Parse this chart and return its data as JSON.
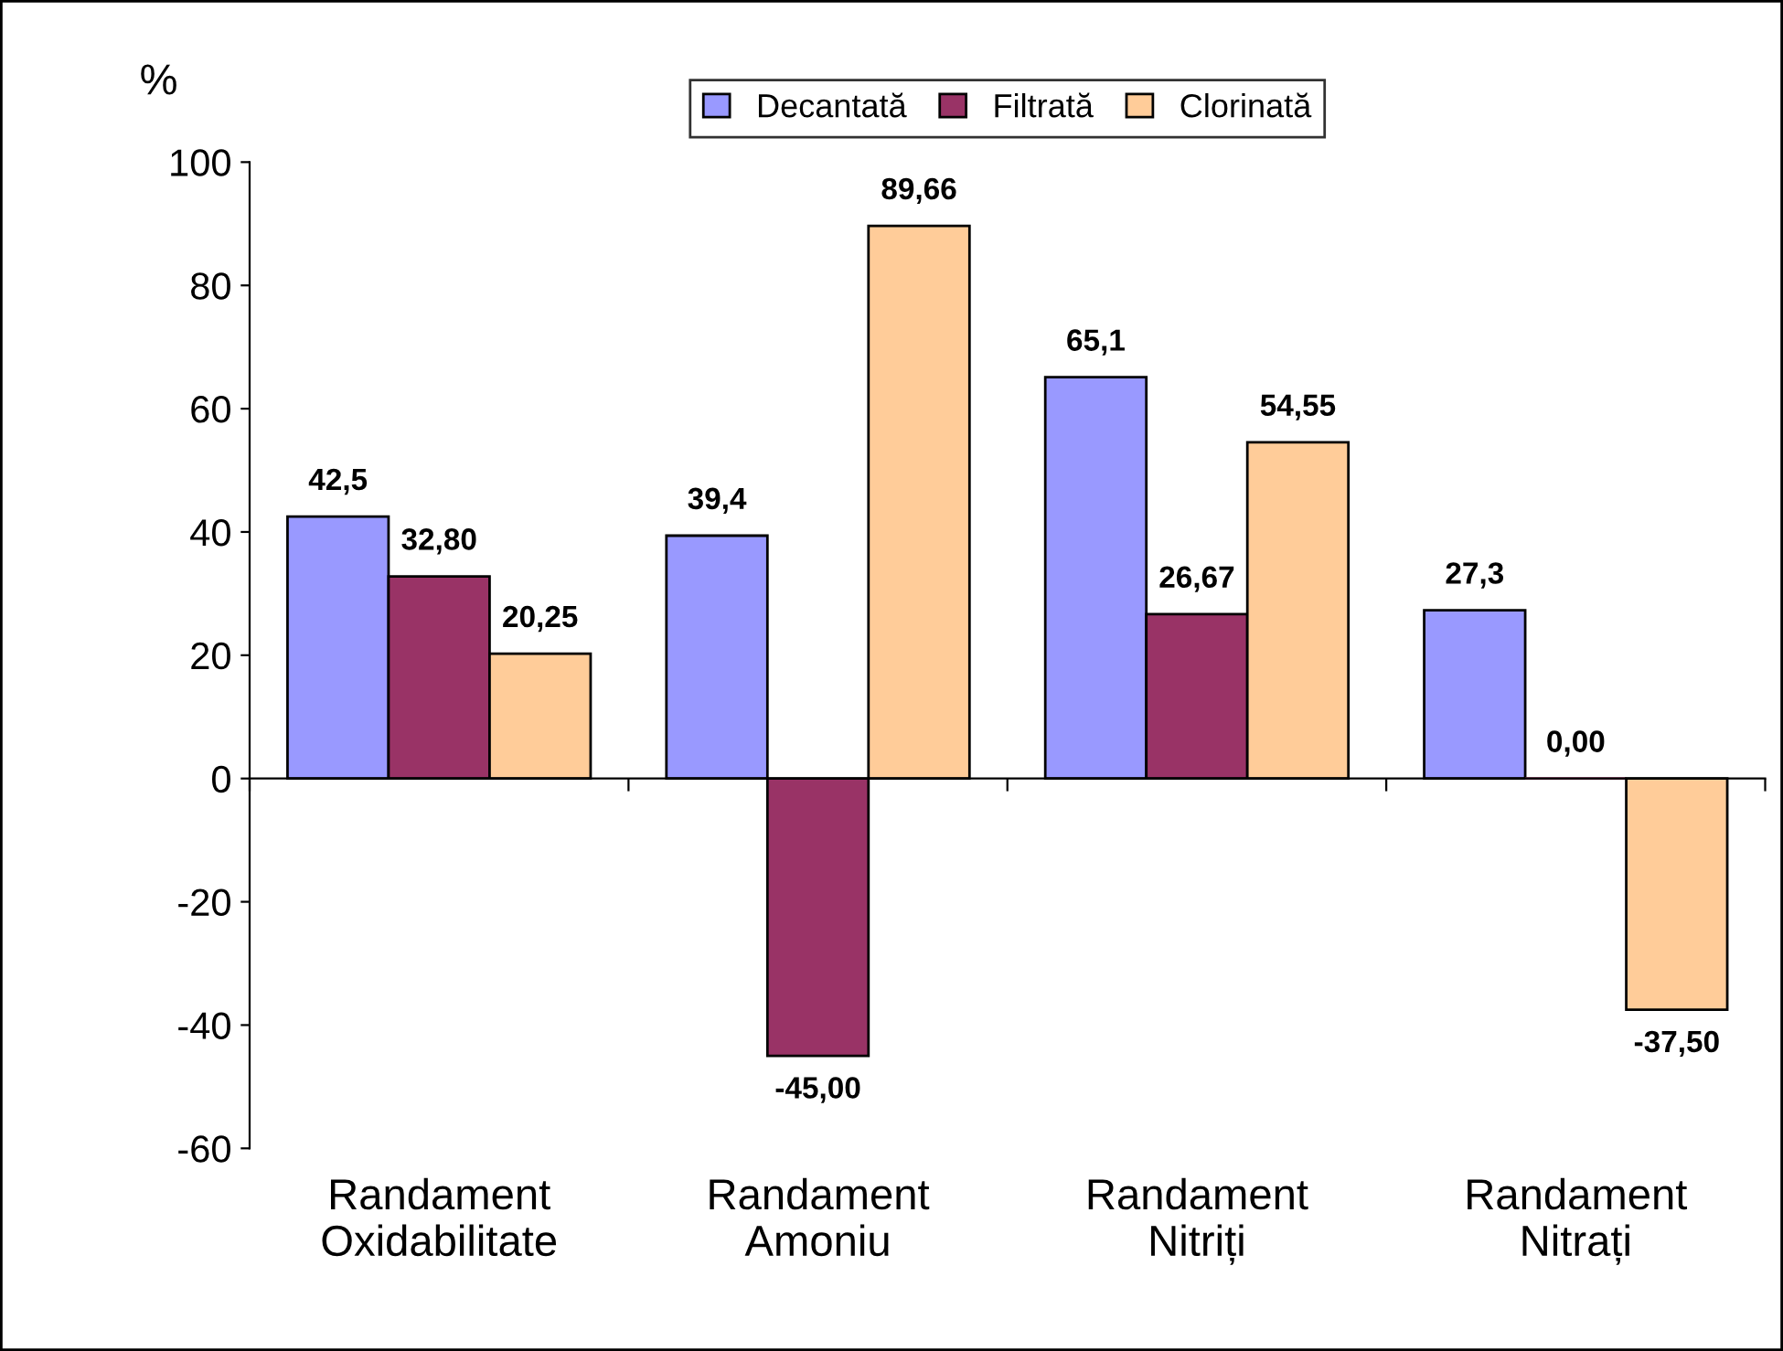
{
  "chart_data": {
    "type": "bar",
    "ylabel": "%",
    "categories": [
      "Randament\nOxidabilitate",
      "Randament\nAmoniu",
      "Randament\nNitriți",
      "Randament\nNitrați"
    ],
    "series": [
      {
        "name": "Decantată",
        "color": "#9999ff",
        "values": [
          42.5,
          39.4,
          65.1,
          27.3
        ],
        "value_labels": [
          "42,5",
          "39,4",
          "65,1",
          "27,3"
        ]
      },
      {
        "name": "Filtrată",
        "color": "#993366",
        "values": [
          32.8,
          -45.0,
          26.67,
          0.0
        ],
        "value_labels": [
          "32,80",
          "-45,00",
          "26,67",
          "0,00"
        ]
      },
      {
        "name": "Clorinată",
        "color": "#ffcc99",
        "values": [
          20.25,
          89.66,
          54.55,
          -37.5
        ],
        "value_labels": [
          "20,25",
          "89,66",
          "54,55",
          "-37,50"
        ]
      }
    ],
    "ylim": [
      -60,
      100
    ],
    "yticks": [
      -60,
      -40,
      -20,
      0,
      20,
      40,
      60,
      80,
      100
    ],
    "legend": "top"
  }
}
